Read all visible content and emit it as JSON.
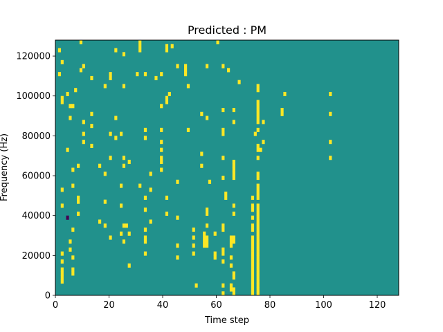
{
  "chart_data": {
    "type": "heatmap",
    "title": "Predicted : PM",
    "xlabel": "Time step",
    "ylabel": "Frequency (Hz)",
    "xlim": [
      0,
      128
    ],
    "ylim": [
      0,
      128000
    ],
    "x_ticks": [
      0,
      20,
      40,
      60,
      80,
      100,
      120
    ],
    "y_ticks": [
      0,
      20000,
      40000,
      60000,
      80000,
      100000,
      120000
    ],
    "grid": false,
    "colormap": "viridis",
    "colors": {
      "background": "#21918c",
      "high": "#fde725",
      "low": "#440154"
    },
    "rows": 64,
    "row_height_hz": 2000,
    "columns": 128,
    "bright_cells_by_column": [
      [],
      [
        61,
        55
      ],
      [
        58,
        49,
        48,
        26,
        22,
        10,
        8,
        6,
        5,
        4,
        3
      ],
      [],
      [
        50,
        36
      ],
      [
        47,
        44,
        13,
        11
      ],
      [
        47,
        31,
        27,
        16,
        9,
        6,
        5
      ],
      [
        51
      ],
      [
        32,
        24,
        23,
        20
      ],
      [
        63,
        56
      ],
      [
        57,
        43,
        40,
        38
      ],
      [],
      [],
      [
        54,
        45,
        42,
        37
      ],
      [],
      [],
      [
        32,
        18
      ],
      [],
      [
        52,
        30,
        23,
        17
      ],
      [],
      [
        55,
        54,
        40,
        34,
        14
      ],
      [],
      [
        61,
        44,
        39
      ],
      [],
      [
        40,
        27,
        22,
        15
      ],
      [
        60,
        52,
        34,
        32,
        17,
        13
      ],
      [
        17
      ],
      [
        33,
        15,
        7
      ],
      [],
      [],
      [
        55
      ],
      [
        63,
        62,
        61,
        27
      ],
      [],
      [
        55,
        41,
        39,
        24,
        21,
        16,
        14,
        13,
        10
      ],
      [],
      [
        30,
        26,
        18
      ],
      [],
      [
        54
      ],
      [],
      [
        55,
        47,
        41,
        38,
        36,
        34,
        33,
        31
      ],
      [],
      [
        62,
        61,
        49,
        48,
        24,
        20
      ],
      [
        50
      ],
      [
        62
      ],
      [],
      [
        57,
        28,
        19,
        12,
        9
      ],
      [],
      [],
      [
        57,
        56,
        55
      ],
      [
        52,
        41
      ],
      [],
      [
        16,
        14,
        12,
        10
      ],
      [
        2
      ],
      [],
      [
        45,
        32,
        35
      ],
      [
        15,
        14,
        13,
        12
      ],
      [
        57,
        44,
        21,
        20,
        17,
        14,
        13,
        12
      ],
      [
        28
      ],
      [],
      [
        15,
        10,
        9
      ],
      [
        63
      ],
      [],
      [
        57,
        46,
        41,
        40,
        34,
        29,
        17,
        16,
        11,
        10,
        8,
        2,
        0
      ],
      [
        25,
        24
      ],
      [
        56
      ],
      [
        12,
        13,
        14,
        9,
        7,
        2,
        1
      ],
      [
        46,
        43,
        33,
        32,
        31,
        30,
        29,
        22,
        20,
        14,
        13,
        5,
        4,
        1,
        0
      ],
      [],
      [
        53
      ],
      [],
      [],
      [],
      [],
      [
        24,
        22,
        21,
        19,
        17,
        16,
        14,
        13,
        12,
        11,
        10,
        9,
        8,
        7,
        6,
        5,
        4,
        3,
        2,
        1,
        0
      ],
      [
        40
      ],
      [
        52,
        51,
        48,
        47,
        46,
        45,
        44,
        43,
        41,
        37,
        36,
        34,
        30,
        29,
        27,
        26,
        25,
        24,
        22,
        21,
        20,
        19,
        18,
        17,
        16,
        15,
        14,
        13,
        12,
        11,
        10,
        9,
        8,
        7,
        6,
        5,
        4,
        3,
        2,
        1,
        0
      ],
      [
        36
      ],
      [
        43,
        38
      ],
      [],
      [],
      [],
      [],
      [],
      [],
      [
        46,
        45
      ],
      [
        50
      ],
      [],
      [],
      [],
      [],
      [],
      [],
      [],
      [],
      [],
      [],
      [],
      [],
      [],
      [],
      [],
      [],
      [
        50,
        45,
        38,
        34
      ],
      [],
      [],
      [],
      [],
      [],
      [],
      [],
      [],
      [],
      [],
      [],
      [],
      [],
      [],
      [],
      [],
      [],
      [],
      [],
      [],
      [],
      [],
      [],
      [],
      [],
      [],
      [],
      [],
      [],
      [],
      [],
      [],
      [],
      [],
      [],
      [],
      [],
      [],
      [],
      [],
      [],
      [],
      [],
      [],
      [],
      [],
      [],
      [],
      [],
      [],
      [],
      [],
      []
    ],
    "dark_cells_by_column": [
      [],
      [],
      [],
      [],
      [
        19
      ],
      [],
      [],
      [],
      [],
      [],
      [],
      [],
      [],
      [],
      [],
      [],
      [],
      [],
      [],
      [],
      [],
      [],
      [],
      [],
      [],
      [],
      [],
      [],
      [],
      [],
      [],
      [],
      [],
      [],
      [],
      [],
      [],
      [],
      [],
      [],
      [],
      [],
      [],
      [],
      [],
      [],
      [],
      [],
      [],
      [],
      [],
      [],
      [],
      [],
      [],
      [],
      [],
      [],
      [],
      [],
      [],
      [],
      [],
      [],
      [],
      [],
      [],
      [],
      [],
      [],
      [],
      [],
      [],
      [],
      [],
      [],
      [],
      [],
      [],
      [],
      [],
      [],
      [],
      [],
      [],
      [],
      [],
      [],
      [],
      [],
      [],
      [],
      [],
      [],
      [],
      [],
      [],
      [],
      [],
      [],
      [],
      [],
      [],
      [],
      [],
      [],
      [],
      [],
      [],
      [],
      [],
      [],
      [],
      [],
      [],
      [],
      [],
      [],
      [],
      []
    ]
  }
}
